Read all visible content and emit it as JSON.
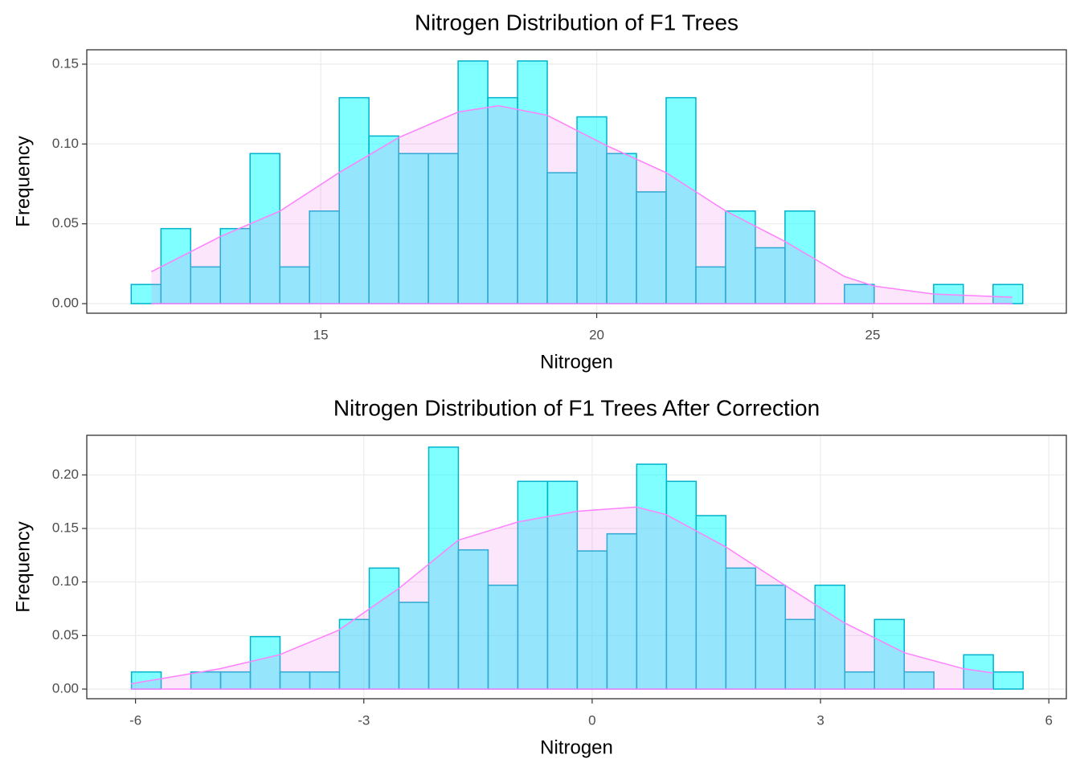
{
  "chart_data": [
    {
      "type": "histogram",
      "title": "Nitrogen Distribution of F1 Trees",
      "x_label": "Nitrogen",
      "y_label": "Frequency",
      "bins": [
        11.565,
        12.104,
        12.642,
        13.181,
        13.719,
        14.258,
        14.796,
        15.335,
        15.873,
        16.412,
        16.95,
        17.489,
        18.027,
        18.566,
        19.104,
        19.643,
        20.181,
        20.72,
        21.258,
        21.797,
        22.335,
        22.874,
        23.412,
        23.951,
        24.489,
        25.028,
        25.566,
        26.105,
        26.643,
        27.182,
        27.72
      ],
      "values": [
        0.012,
        0.047,
        0.023,
        0.047,
        0.094,
        0.023,
        0.058,
        0.129,
        0.105,
        0.094,
        0.094,
        0.152,
        0.129,
        0.152,
        0.082,
        0.117,
        0.094,
        0.07,
        0.129,
        0.023,
        0.058,
        0.035,
        0.058,
        0,
        0.012,
        0,
        0,
        0.012,
        0,
        0.012
      ],
      "color": "#00FFFF",
      "edge_color": "#00B2CC",
      "density": {
        "color": "#FF80FF",
        "fill": "#EE82EE",
        "x": [
          11.93,
          13.18,
          14.26,
          15.33,
          16.41,
          17.49,
          18.22,
          19.1,
          20.18,
          21.26,
          22.34,
          23.41,
          23.95,
          24.49,
          25.03,
          26.11,
          27.53
        ],
        "y": [
          0.02,
          0.042,
          0.058,
          0.082,
          0.104,
          0.12,
          0.124,
          0.118,
          0.099,
          0.082,
          0.058,
          0.039,
          0.028,
          0.017,
          0.011,
          0.006,
          0.004
        ]
      },
      "xlim": [
        10.76,
        28.51
      ],
      "xticks": [
        15,
        20,
        25
      ],
      "ylim": [
        -0.006,
        0.159
      ],
      "yticks": [
        {
          "value": 0,
          "label": "0.00"
        },
        {
          "value": 0.05,
          "label": "0.05"
        },
        {
          "value": 0.1,
          "label": "0.10"
        },
        {
          "value": 0.15,
          "label": "0.15"
        }
      ],
      "grid": true
    },
    {
      "type": "histogram",
      "title": "Nitrogen Distribution of F1 Trees After Correction",
      "x_label": "Nitrogen",
      "y_label": "Frequency",
      "bins": [
        -6.053,
        -5.663,
        -5.272,
        -4.882,
        -4.491,
        -4.101,
        -3.71,
        -3.32,
        -2.929,
        -2.539,
        -2.148,
        -1.758,
        -1.367,
        -0.977,
        -0.586,
        -0.196,
        0.195,
        0.585,
        0.976,
        1.366,
        1.757,
        2.147,
        2.538,
        2.928,
        3.319,
        3.709,
        4.1,
        4.49,
        4.881,
        5.271,
        5.662
      ],
      "values": [
        0.016,
        0,
        0.016,
        0.016,
        0.049,
        0.016,
        0.016,
        0.065,
        0.113,
        0.081,
        0.226,
        0.13,
        0.097,
        0.194,
        0.194,
        0.129,
        0.145,
        0.21,
        0.194,
        0.162,
        0.113,
        0.097,
        0.065,
        0.097,
        0.016,
        0.065,
        0.016,
        0,
        0.032,
        0.016
      ],
      "color": "#00FFFF",
      "edge_color": "#00B2CC",
      "density": {
        "color": "#FF80FF",
        "fill": "#EE82EE",
        "x": [
          -6.06,
          -4.89,
          -4.11,
          -3.33,
          -2.54,
          -1.76,
          -0.98,
          -0.2,
          0.58,
          0.97,
          1.75,
          2.53,
          3.31,
          4.1,
          4.88,
          5.27
        ],
        "y": [
          0.005,
          0.019,
          0.032,
          0.055,
          0.094,
          0.139,
          0.156,
          0.166,
          0.17,
          0.163,
          0.133,
          0.097,
          0.062,
          0.034,
          0.019,
          0.015
        ]
      },
      "xlim": [
        -6.64,
        6.23
      ],
      "xticks": [
        -6,
        -3,
        0,
        3,
        6
      ],
      "ylim": [
        -0.009,
        0.237
      ],
      "yticks": [
        {
          "value": 0,
          "label": "0.00"
        },
        {
          "value": 0.05,
          "label": "0.05"
        },
        {
          "value": 0.1,
          "label": "0.10"
        },
        {
          "value": 0.15,
          "label": "0.15"
        },
        {
          "value": 0.2,
          "label": "0.20"
        }
      ],
      "grid": true
    }
  ]
}
